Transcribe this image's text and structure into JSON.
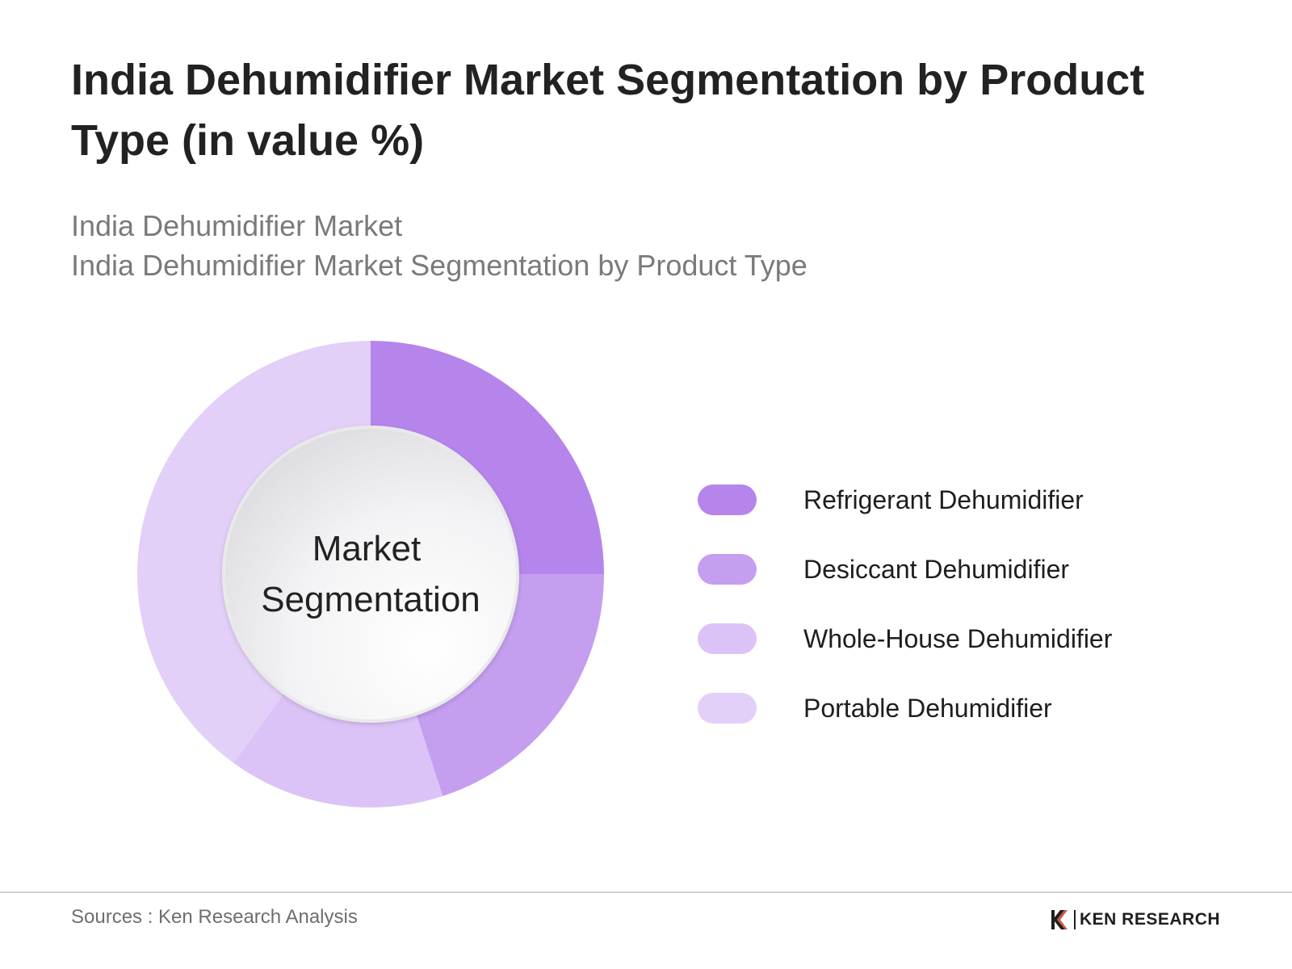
{
  "title": "India Dehumidifier Market Segmentation by Product Type (in value %)",
  "subtitle_lines": [
    "India Dehumidifier Market",
    "India Dehumidifier Market Segmentation by Product Type"
  ],
  "center_label": {
    "line1": "Market",
    "line2": "Segmentation"
  },
  "legend": [
    {
      "label": "Refrigerant Dehumidifier",
      "color": "#b585ec"
    },
    {
      "label": "Desiccant Dehumidifier",
      "color": "#c59ef0"
    },
    {
      "label": "Whole-House Dehumidifier",
      "color": "#dbc3f7"
    },
    {
      "label": "Portable Dehumidifier",
      "color": "#e3d0f8"
    }
  ],
  "footer": {
    "source": "Sources : Ken Research Analysis",
    "brand": "KEN RESEARCH"
  },
  "chart_data": {
    "type": "pie",
    "donut": true,
    "title": "India Dehumidifier Market Segmentation by Product Type (in value %)",
    "categories": [
      "Refrigerant Dehumidifier",
      "Desiccant Dehumidifier",
      "Whole-House Dehumidifier",
      "Portable Dehumidifier"
    ],
    "values": [
      25,
      20,
      15,
      40
    ],
    "colors": [
      "#b585ec",
      "#c59ef0",
      "#dbc3f7",
      "#e3d0f8"
    ],
    "start_angle_deg": 0,
    "direction": "clockwise",
    "legend_position": "right"
  }
}
